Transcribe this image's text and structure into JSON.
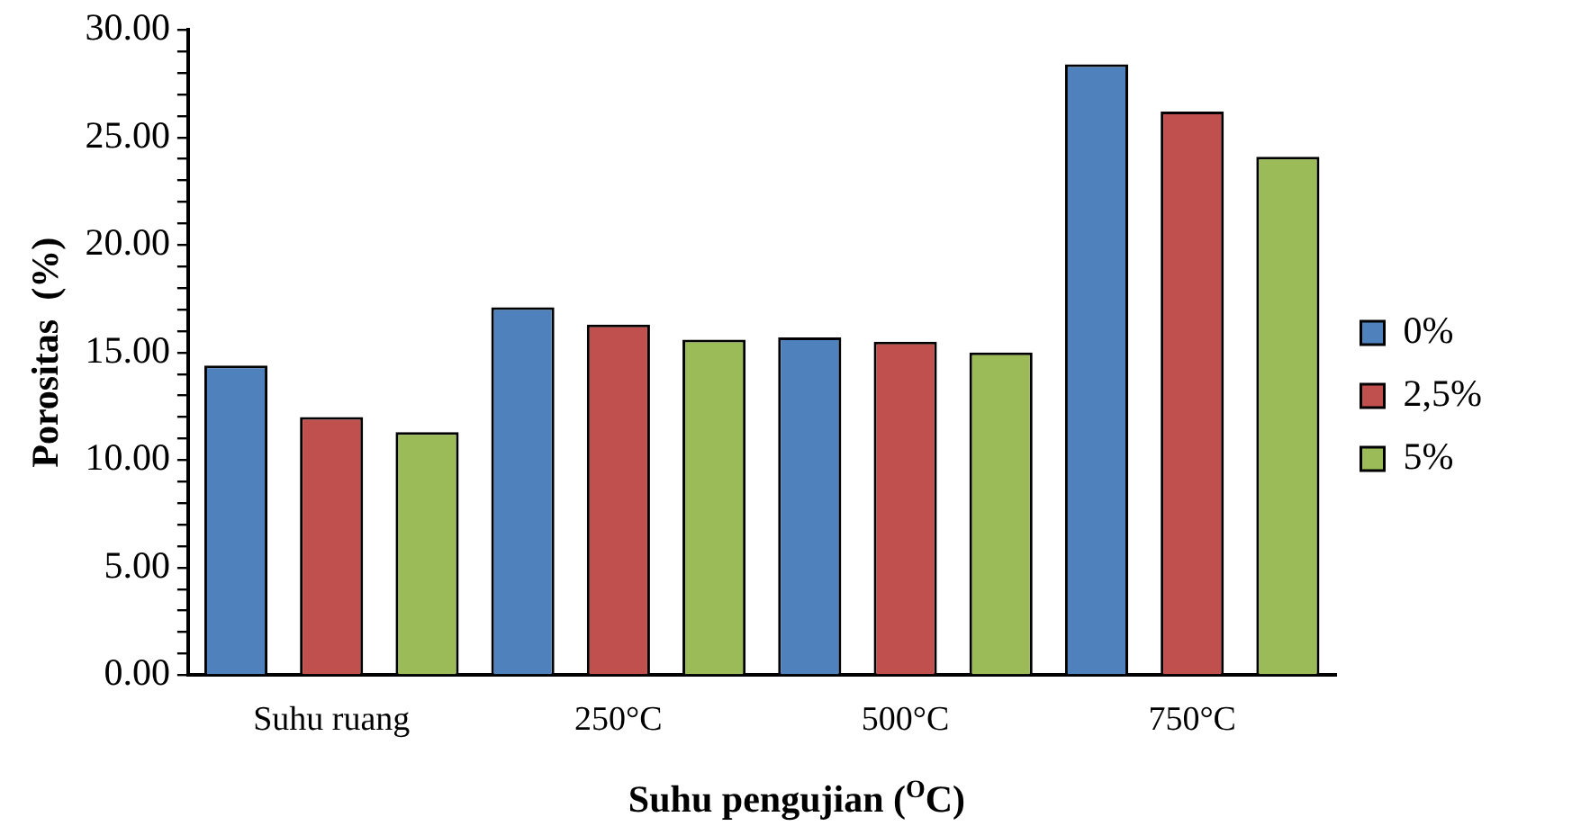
{
  "chart_data": {
    "type": "bar",
    "xlabel": "Suhu pengujian ($^{O}$C)",
    "ylabel": "Porositas  (%)",
    "categories": [
      "Suhu ruang",
      "250°C",
      "500°C",
      "750°C"
    ],
    "series": [
      {
        "name": "0%",
        "color": "#4f81bd",
        "values": [
          14.4,
          17.1,
          15.7,
          28.4
        ]
      },
      {
        "name": "2,5%",
        "color": "#c0504d",
        "values": [
          12.0,
          16.3,
          15.5,
          26.2
        ]
      },
      {
        "name": "5%",
        "color": "#9bbb59",
        "values": [
          11.3,
          15.6,
          15.0,
          24.1
        ]
      }
    ],
    "ylim": [
      0,
      30
    ],
    "yticks": [
      {
        "value": 0,
        "label": "0.00"
      },
      {
        "value": 1,
        "label": null
      },
      {
        "value": 2,
        "label": null
      },
      {
        "value": 3,
        "label": null
      },
      {
        "value": 4,
        "label": null
      },
      {
        "value": 5,
        "label": "5.00"
      },
      {
        "value": 6,
        "label": null
      },
      {
        "value": 7,
        "label": null
      },
      {
        "value": 8,
        "label": null
      },
      {
        "value": 9,
        "label": null
      },
      {
        "value": 10,
        "label": "10.00"
      },
      {
        "value": 11,
        "label": null
      },
      {
        "value": 12,
        "label": null
      },
      {
        "value": 13,
        "label": null
      },
      {
        "value": 14,
        "label": null
      },
      {
        "value": 15,
        "label": "15.00"
      },
      {
        "value": 16,
        "label": null
      },
      {
        "value": 17,
        "label": null
      },
      {
        "value": 18,
        "label": null
      },
      {
        "value": 19,
        "label": null
      },
      {
        "value": 20,
        "label": "20.00"
      },
      {
        "value": 21,
        "label": null
      },
      {
        "value": 22,
        "label": null
      },
      {
        "value": 23,
        "label": null
      },
      {
        "value": 24,
        "label": null
      },
      {
        "value": 25,
        "label": "25.00"
      },
      {
        "value": 26,
        "label": null
      },
      {
        "value": 27,
        "label": null
      },
      {
        "value": 28,
        "label": null
      },
      {
        "value": 29,
        "label": null
      },
      {
        "value": 30,
        "label": "30.00"
      }
    ],
    "grid": false,
    "legend": "right"
  }
}
